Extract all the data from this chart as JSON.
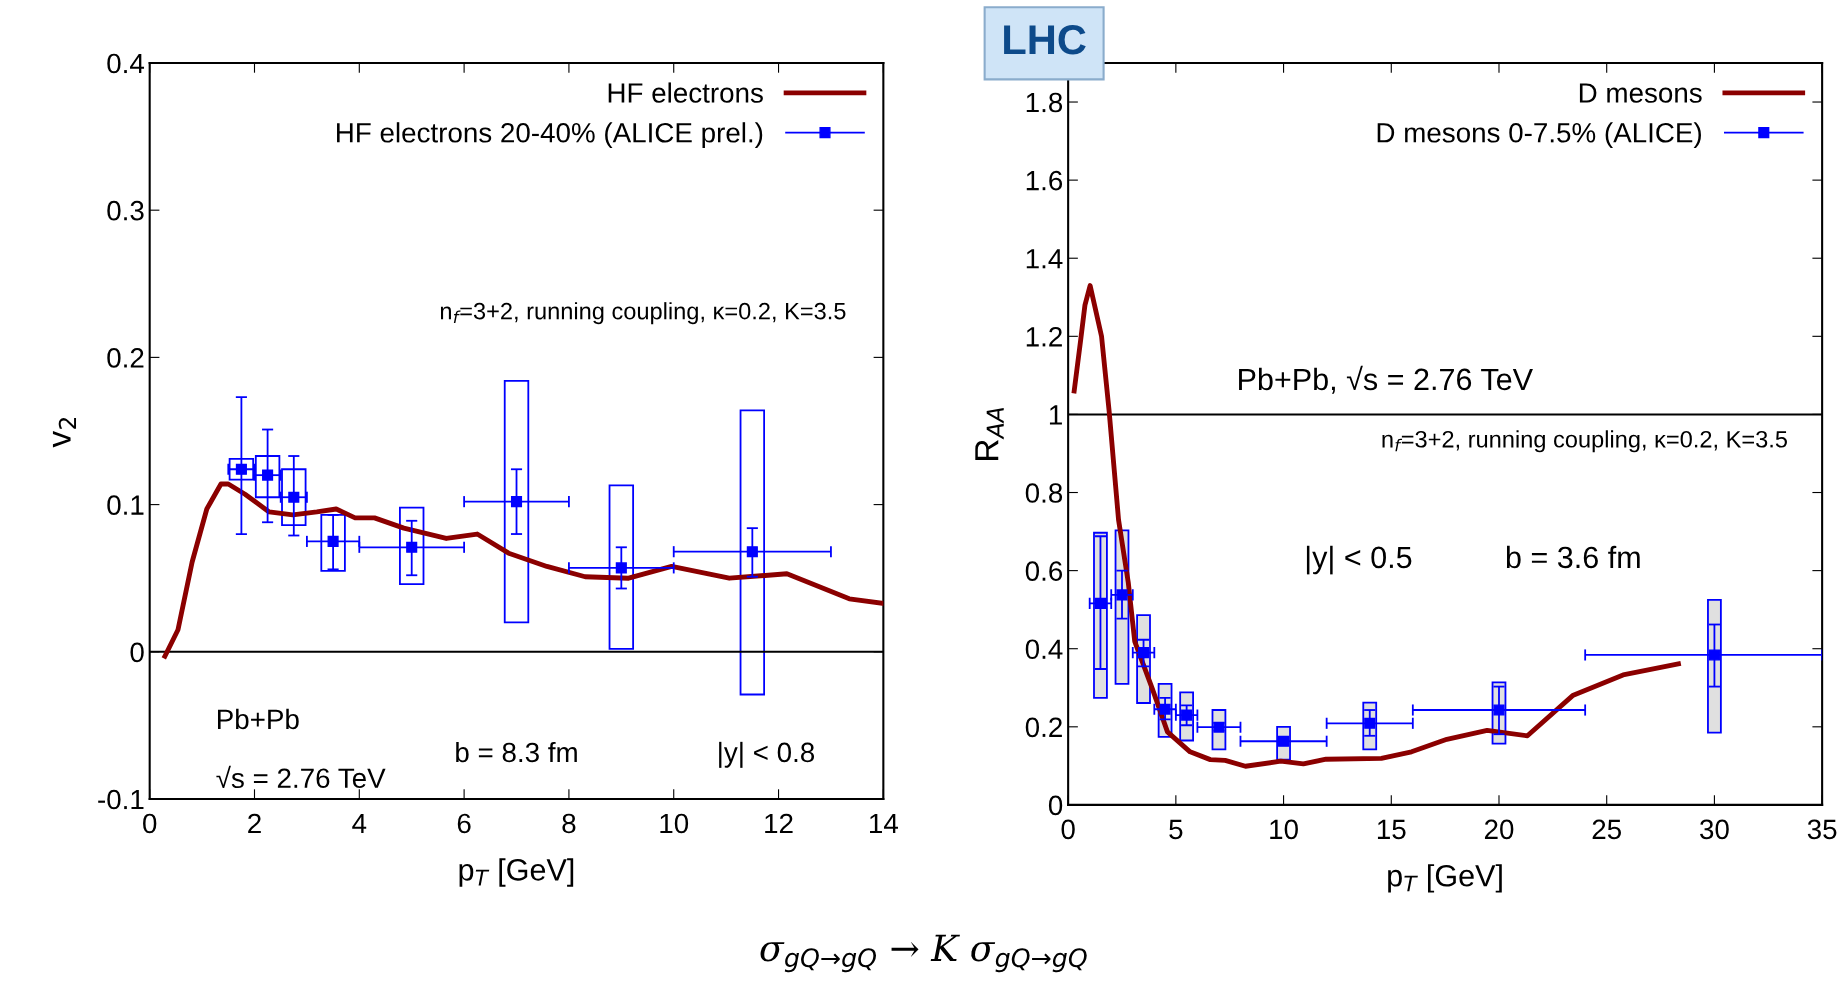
{
  "chart_data": [
    {
      "type": "line",
      "xlabel": "p$_{T}$ [GeV]",
      "ylabel": "v$_{2}$",
      "xlim": [
        0,
        14
      ],
      "xticks": [
        0,
        2,
        4,
        6,
        8,
        10,
        12,
        14
      ],
      "ylim": [
        -0.1,
        0.4
      ],
      "yticks": [
        -0.1,
        0,
        0.1,
        0.2,
        0.3,
        0.4
      ],
      "grid": false,
      "legend": "top right",
      "annotations": [
        "n$_{f}$=3+2, running coupling, κ=0.2, K=3.5",
        "Pb+Pb",
        "√s = 2.76 TeV",
        "b = 8.3 fm",
        "|y| < 0.8",
        "σ$_{gQ→gQ}$ → K σ$_{gQ→gQ}$"
      ],
      "ref_lines": [
        {
          "axis": "y",
          "value": 0,
          "color": "#000000"
        }
      ],
      "series": [
        {
          "type": "bar",
          "color": "#0000ff",
          "x": [
            1.75,
            2.25,
            2.75,
            3.5,
            5,
            7,
            9,
            11.5
          ],
          "base": [
            0.117,
            0.105,
            0.086,
            0.055,
            0.046,
            0.02,
            0.002,
            -0.029
          ],
          "values": [
            0.014,
            0.028,
            0.038,
            0.038,
            0.052,
            0.164,
            0.111,
            0.193
          ]
        },
        {
          "name": "HF electrons",
          "color": "#8b0000",
          "x": [
            0.29,
            0.54,
            0.81,
            1.09,
            1.36,
            1.5,
            1.82,
            2.28,
            2.73,
            3.19,
            3.56,
            3.92,
            4.29,
            4.85,
            5.66,
            6.25,
            6.85,
            7.58,
            8.31,
            9.14,
            9.96,
            11.06,
            12.16,
            13.35,
            13.98
          ],
          "values": [
            -0.003,
            0.015,
            0.061,
            0.097,
            0.114,
            0.114,
            0.107,
            0.095,
            0.093,
            0.095,
            0.097,
            0.091,
            0.091,
            0.084,
            0.077,
            0.08,
            0.067,
            0.058,
            0.051,
            0.05,
            0.058,
            0.05,
            0.053,
            0.036,
            0.033
          ]
        },
        {
          "type": "scatter",
          "name": "HF electrons 20-40% (ALICE prel.)",
          "color": "#0000ff",
          "marker": "square",
          "x": [
            1.75,
            2.25,
            2.75,
            3.5,
            5,
            7,
            9,
            11.5
          ],
          "values": [
            0.124,
            0.12,
            0.105,
            0.075,
            0.071,
            0.102,
            0.057,
            0.068
          ],
          "errors": [
            [
              0.08,
              0.173
            ],
            [
              0.088,
              0.151
            ],
            [
              0.079,
              0.133
            ],
            [
              0.056,
              0.093
            ],
            [
              0.052,
              0.089
            ],
            [
              0.08,
              0.124
            ],
            [
              0.043,
              0.071
            ],
            [
              0.051,
              0.084
            ]
          ],
          "xerrors": [
            [
              1.5,
              2.0
            ],
            [
              2.0,
              2.5
            ],
            [
              2.5,
              3.0
            ],
            [
              3,
              4
            ],
            [
              4,
              6
            ],
            [
              6,
              8
            ],
            [
              8,
              10
            ],
            [
              10,
              13
            ]
          ]
        }
      ]
    },
    {
      "type": "line",
      "xlabel": "p$_{T}$ [GeV]",
      "ylabel": "R$_{AA}$",
      "xlim": [
        0,
        35
      ],
      "xticks": [
        0,
        5,
        10,
        15,
        20,
        25,
        30,
        35
      ],
      "ylim": [
        0,
        1.9
      ],
      "yticks": [
        0,
        0.2,
        0.4,
        0.6,
        0.8,
        1,
        1.2,
        1.4,
        1.6,
        1.8
      ],
      "grid": false,
      "legend": "top right",
      "annotations": [
        "Pb+Pb, √s = 2.76 TeV",
        "n$_{f}$=3+2, running coupling, κ=0.2, K=3.5",
        "|y| < 0.5",
        "b = 3.6 fm",
        "LHC"
      ],
      "ref_lines": [
        {
          "axis": "y",
          "value": 1,
          "color": "#000000"
        }
      ],
      "series": [
        {
          "type": "bar",
          "color": "#e0e0e0",
          "x": [
            1.5,
            2.5,
            3.5,
            4.5,
            5.5,
            7,
            10,
            14,
            20,
            30
          ],
          "base": [
            0.274,
            0.31,
            0.261,
            0.174,
            0.165,
            0.142,
            0.116,
            0.142,
            0.157,
            0.185
          ],
          "values": [
            0.423,
            0.393,
            0.225,
            0.136,
            0.123,
            0.101,
            0.084,
            0.12,
            0.157,
            0.34
          ]
        },
        {
          "name": "D mesons",
          "color": "#8b0000",
          "x": [
            0.28,
            0.58,
            0.78,
            1.02,
            1.55,
            1.9,
            2.34,
            2.79,
            3.09,
            3.91,
            4.61,
            5.66,
            6.6,
            7.29,
            8.23,
            9.87,
            10.92,
            11.97,
            14.54,
            15.94,
            17.58,
            19.45,
            21.32,
            23.42,
            25.76,
            28.33
          ],
          "values": [
            1.06,
            1.19,
            1.28,
            1.33,
            1.2,
            1.01,
            0.73,
            0.57,
            0.419,
            0.297,
            0.187,
            0.136,
            0.116,
            0.114,
            0.099,
            0.112,
            0.105,
            0.117,
            0.119,
            0.136,
            0.168,
            0.191,
            0.177,
            0.28,
            0.333,
            0.361
          ]
        },
        {
          "type": "scatter",
          "name": "D mesons 0-7.5% (ALICE)",
          "color": "#0000ff",
          "marker": "square",
          "x": [
            1.5,
            2.5,
            3.5,
            4.5,
            5.5,
            7,
            10,
            14,
            20,
            30
          ],
          "values": [
            0.516,
            0.538,
            0.39,
            0.245,
            0.23,
            0.199,
            0.163,
            0.209,
            0.243,
            0.384
          ],
          "errors": [
            [
              0.348,
              0.688
            ],
            [
              0.477,
              0.6
            ],
            [
              0.355,
              0.423
            ],
            [
              0.219,
              0.274
            ],
            [
              0.204,
              0.255
            ],
            [
              0.19,
              0.21
            ],
            [
              0.153,
              0.173
            ],
            [
              0.177,
              0.243
            ],
            [
              0.181,
              0.303
            ],
            [
              0.303,
              0.462
            ]
          ],
          "xerrors": [
            [
              1,
              2
            ],
            [
              2,
              3
            ],
            [
              3,
              4
            ],
            [
              4,
              5
            ],
            [
              5,
              6
            ],
            [
              6,
              8
            ],
            [
              8,
              12
            ],
            [
              12,
              16
            ],
            [
              16,
              24
            ],
            [
              24,
              35
            ]
          ]
        }
      ]
    }
  ]
}
